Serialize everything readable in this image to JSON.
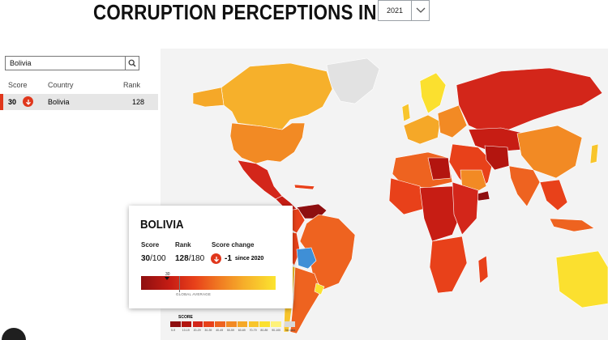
{
  "page": {
    "title": "CORRUPTION PERCEPTIONS INDEX",
    "year_selected": "2021"
  },
  "sidebar": {
    "search_value": "Bolivia",
    "columns": [
      "Score",
      "Country",
      "Rank"
    ],
    "rows": [
      {
        "score": "30",
        "country": "Bolivia",
        "rank": "128",
        "trend": "down"
      }
    ]
  },
  "country_card": {
    "name": "BOLIVIA",
    "score_label": "Score",
    "score": "30",
    "score_total": "/100",
    "rank_label": "Rank",
    "rank": "128",
    "rank_total": "/180",
    "change_label": "Score change",
    "change_value": "-1",
    "change_since": "since 2020",
    "marker_value": "30",
    "global_average_label": "GLOBAL AVERAGE"
  },
  "legend": {
    "title": "SCORE",
    "ticks": [
      "0-9",
      "10-19",
      "20-29",
      "30-39",
      "40-49",
      "50-59",
      "60-69",
      "70-79",
      "80-89",
      "90-100",
      "No data"
    ],
    "colors": [
      "#8e0f10",
      "#b3150f",
      "#d3261a",
      "#e8411a",
      "#ee6320",
      "#f28a24",
      "#f5a828",
      "#f8c52c",
      "#fbe02f",
      "#fef27a",
      "#d9d9d9"
    ]
  },
  "map_colors": {
    "ocean": "#f3f3f3",
    "no_data": "#e2e2e2",
    "highlight": "#3f8fd6"
  },
  "icons": {
    "dropdown": "chevron-down-icon",
    "search": "search-icon",
    "trend_down": "arrow-down-icon"
  }
}
